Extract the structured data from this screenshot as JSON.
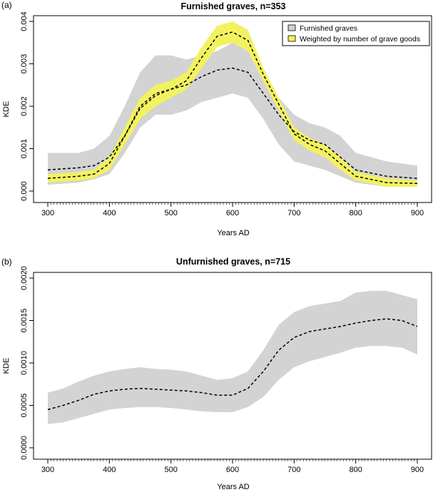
{
  "colors": {
    "band_gray": "#d3d3d3",
    "band_yellow": "#f2f261",
    "line": "#000000"
  },
  "chart_data": [
    {
      "panel_label": "(a)",
      "type": "area",
      "title": "Furnished graves, n=353",
      "xlabel": "Years AD",
      "ylabel": "KDE",
      "xlim": [
        300,
        900
      ],
      "ylim": [
        0,
        0.004
      ],
      "xticks": [
        300,
        400,
        500,
        600,
        700,
        800,
        900
      ],
      "yticks": [
        0.0,
        0.001,
        0.002,
        0.003,
        0.004
      ],
      "ytick_labels": [
        "0.000",
        "0.001",
        "0.002",
        "0.003",
        "0.004"
      ],
      "legend_position": "top-right",
      "grid": false,
      "series": [
        {
          "name": "Furnished graves",
          "kind": "band",
          "color": "#d3d3d3",
          "x": [
            300,
            350,
            375,
            400,
            425,
            450,
            475,
            500,
            525,
            550,
            575,
            600,
            625,
            650,
            675,
            700,
            725,
            750,
            775,
            800,
            850,
            900
          ],
          "lower": [
            0.00015,
            0.0002,
            0.00028,
            0.0004,
            0.0009,
            0.0015,
            0.0018,
            0.0018,
            0.0019,
            0.0021,
            0.0022,
            0.0023,
            0.0022,
            0.0017,
            0.0011,
            0.0007,
            0.0006,
            0.0005,
            0.00035,
            0.0002,
            0.0001,
            0.0001
          ],
          "upper": [
            0.0009,
            0.0009,
            0.001,
            0.0013,
            0.002,
            0.0028,
            0.0032,
            0.0032,
            0.0031,
            0.0032,
            0.0033,
            0.0035,
            0.0033,
            0.0027,
            0.0022,
            0.0018,
            0.0016,
            0.0015,
            0.0013,
            0.0009,
            0.0007,
            0.0006
          ],
          "mean": [
            0.0005,
            0.00055,
            0.0006,
            0.0008,
            0.0013,
            0.002,
            0.0023,
            0.0024,
            0.0025,
            0.0027,
            0.00285,
            0.0029,
            0.0028,
            0.0023,
            0.0018,
            0.0014,
            0.0012,
            0.0011,
            0.0008,
            0.0005,
            0.00035,
            0.0003
          ]
        },
        {
          "name": "Weighted by number of grave goods",
          "kind": "band",
          "color": "#f2f261",
          "x": [
            300,
            350,
            375,
            400,
            425,
            450,
            475,
            500,
            525,
            550,
            575,
            600,
            625,
            650,
            675,
            700,
            725,
            750,
            775,
            800,
            850,
            900
          ],
          "lower": [
            0.0002,
            0.00025,
            0.0003,
            0.0005,
            0.0011,
            0.0017,
            0.002,
            0.0022,
            0.0024,
            0.0029,
            0.0034,
            0.0035,
            0.0033,
            0.0026,
            0.0019,
            0.0012,
            0.00095,
            0.0008,
            0.0005,
            0.00025,
            0.0001,
            0.0001
          ],
          "upper": [
            0.0004,
            0.00045,
            0.0005,
            0.0008,
            0.0015,
            0.0022,
            0.0025,
            0.0026,
            0.0028,
            0.0034,
            0.0039,
            0.004,
            0.0038,
            0.0029,
            0.0022,
            0.0015,
            0.00125,
            0.0011,
            0.0008,
            0.00045,
            0.0003,
            0.00025
          ],
          "mean": [
            0.0003,
            0.00035,
            0.0004,
            0.00065,
            0.0013,
            0.00195,
            0.00225,
            0.0024,
            0.0026,
            0.00315,
            0.00365,
            0.00375,
            0.00355,
            0.00275,
            0.00205,
            0.00135,
            0.0011,
            0.00095,
            0.00065,
            0.00035,
            0.0002,
            0.00018
          ]
        }
      ],
      "x_minor_tick_count": 121
    },
    {
      "panel_label": "(b)",
      "type": "area",
      "title": "Unfurnished graves, n=715",
      "xlabel": "Years AD",
      "ylabel": "KDE",
      "xlim": [
        300,
        900
      ],
      "ylim": [
        0,
        0.002
      ],
      "xticks": [
        300,
        400,
        500,
        600,
        700,
        800,
        900
      ],
      "yticks": [
        0.0,
        0.0005,
        0.001,
        0.0015,
        0.002
      ],
      "ytick_labels": [
        "0.0000",
        "0.0005",
        "0.0010",
        "0.0015",
        "0.0020"
      ],
      "grid": false,
      "series": [
        {
          "kind": "band",
          "color": "#d3d3d3",
          "x": [
            300,
            325,
            350,
            375,
            400,
            425,
            450,
            475,
            500,
            525,
            550,
            575,
            600,
            625,
            650,
            675,
            700,
            725,
            750,
            775,
            800,
            825,
            850,
            875,
            900
          ],
          "lower": [
            0.00028,
            0.0003,
            0.00035,
            0.0004,
            0.00045,
            0.00047,
            0.00048,
            0.00048,
            0.00047,
            0.00045,
            0.00043,
            0.00042,
            0.00042,
            0.00048,
            0.0006,
            0.0008,
            0.00095,
            0.00102,
            0.00107,
            0.00112,
            0.00118,
            0.0012,
            0.0012,
            0.00118,
            0.0011
          ],
          "upper": [
            0.00065,
            0.0007,
            0.00078,
            0.00085,
            0.0009,
            0.00093,
            0.00095,
            0.00093,
            0.00092,
            0.0009,
            0.00085,
            0.0008,
            0.00082,
            0.0009,
            0.00115,
            0.00145,
            0.0016,
            0.00167,
            0.0017,
            0.00173,
            0.00183,
            0.00185,
            0.00185,
            0.0018,
            0.00175
          ],
          "mean": [
            0.00045,
            0.0005,
            0.00056,
            0.00063,
            0.00067,
            0.00069,
            0.0007,
            0.00069,
            0.00068,
            0.00067,
            0.00065,
            0.00062,
            0.00062,
            0.0007,
            0.0009,
            0.00115,
            0.0013,
            0.00137,
            0.0014,
            0.00143,
            0.00147,
            0.0015,
            0.00152,
            0.0015,
            0.00143
          ]
        }
      ],
      "x_minor_tick_count": 121
    }
  ]
}
